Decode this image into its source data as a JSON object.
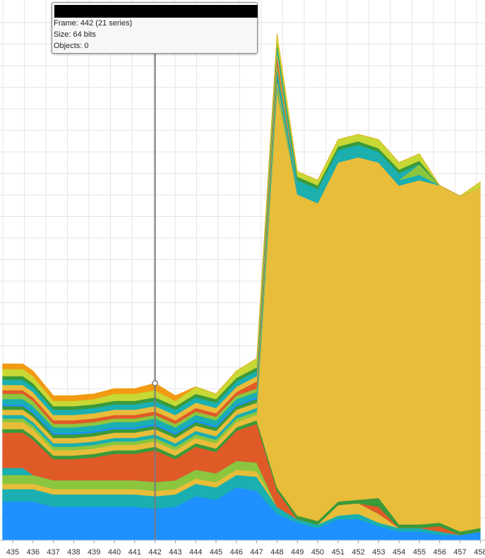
{
  "chart_data": {
    "type": "area",
    "stacked": true,
    "x_ticks": [
      435,
      436,
      437,
      438,
      439,
      440,
      441,
      442,
      443,
      444,
      445,
      446,
      447,
      448,
      449,
      450,
      451,
      452,
      453,
      454,
      455,
      456,
      457,
      458
    ],
    "x": [
      434.5,
      435.5,
      436,
      437,
      438,
      439,
      440,
      441,
      442,
      443,
      444,
      445,
      446,
      447,
      448,
      449,
      450,
      451,
      452,
      453,
      454,
      455,
      456,
      457,
      458
    ],
    "ylim": [
      0,
      300
    ],
    "grid": true,
    "series": [
      {
        "color": "#1e90ff",
        "values": [
          22,
          22,
          22,
          19,
          19,
          19,
          19,
          19,
          18,
          19,
          25,
          23,
          30,
          28,
          15,
          10,
          7,
          12,
          12,
          8,
          5,
          5,
          3,
          3,
          5
        ]
      },
      {
        "color": "#1aafb0",
        "values": [
          7,
          7,
          7,
          7,
          7,
          7,
          7,
          7,
          7,
          7,
          7,
          7,
          7,
          8,
          4,
          2,
          2,
          2,
          3,
          2,
          2,
          2,
          2,
          0,
          0
        ]
      },
      {
        "color": "#e8bd3a",
        "values": [
          3,
          3,
          3,
          3,
          3,
          3,
          3,
          3,
          3,
          3,
          3,
          3,
          3,
          3,
          0,
          0,
          0,
          6,
          6,
          5,
          0,
          0,
          0,
          0,
          0
        ]
      },
      {
        "color": "#8cc63f",
        "values": [
          5,
          5,
          5,
          5,
          5,
          5,
          5,
          5,
          5,
          5,
          5,
          5,
          5,
          5,
          0,
          0,
          0,
          0,
          0,
          0,
          0,
          0,
          0,
          0,
          0
        ]
      },
      {
        "color": "#1aafb0",
        "values": [
          4,
          4,
          0,
          0,
          0,
          0,
          0,
          0,
          0,
          0,
          0,
          0,
          0,
          0,
          0,
          0,
          0,
          0,
          0,
          0,
          0,
          0,
          0,
          0,
          0
        ]
      },
      {
        "color": "#e05a28",
        "values": [
          20,
          20,
          20,
          12,
          12,
          13,
          15,
          15,
          18,
          12,
          13,
          12,
          17,
          22,
          9,
          0,
          0,
          0,
          0,
          4,
          0,
          0,
          3,
          0,
          0
        ]
      },
      {
        "color": "#3a9a3a",
        "values": [
          2,
          2,
          2,
          2,
          2,
          2,
          2,
          2,
          2,
          2,
          2,
          2,
          2,
          2,
          2,
          2,
          2,
          2,
          2,
          5,
          2,
          2,
          2,
          2,
          2
        ]
      },
      {
        "color": "#e8bd3a",
        "values": [
          4,
          4,
          4,
          3,
          3,
          3,
          3,
          3,
          3,
          3,
          3,
          3,
          3,
          3,
          224,
          182,
          180,
          192,
          194,
          190,
          192,
          195,
          191,
          190,
          193
        ]
      },
      {
        "color": "#8cc63f",
        "values": [
          2,
          2,
          2,
          2,
          2,
          2,
          2,
          2,
          2,
          2,
          2,
          2,
          2,
          2,
          2,
          0,
          0,
          0,
          0,
          0,
          0,
          0,
          0,
          0,
          0
        ]
      },
      {
        "color": "#1aafb0",
        "values": [
          2,
          2,
          2,
          2,
          2,
          2,
          2,
          2,
          2,
          2,
          2,
          2,
          2,
          2,
          2,
          0,
          0,
          0,
          0,
          0,
          0,
          0,
          0,
          0,
          0
        ]
      },
      {
        "color": "#e8bd3a",
        "values": [
          3,
          3,
          3,
          3,
          3,
          3,
          3,
          3,
          3,
          3,
          3,
          3,
          3,
          3,
          3,
          0,
          0,
          0,
          0,
          0,
          0,
          0,
          0,
          0,
          0
        ]
      },
      {
        "color": "#3a9a3a",
        "values": [
          2,
          2,
          2,
          2,
          2,
          2,
          2,
          2,
          2,
          2,
          2,
          2,
          2,
          2,
          2,
          0,
          0,
          0,
          0,
          0,
          0,
          0,
          0,
          0,
          0
        ]
      },
      {
        "color": "#1e90ff",
        "values": [
          1,
          1,
          1,
          1,
          1,
          1,
          1,
          1,
          1,
          1,
          1,
          1,
          1,
          1,
          1,
          0,
          0,
          0,
          0,
          0,
          0,
          0,
          0,
          0,
          0
        ]
      },
      {
        "color": "#1aafb0",
        "values": [
          3,
          3,
          3,
          3,
          3,
          3,
          3,
          3,
          3,
          3,
          3,
          3,
          3,
          3,
          3,
          4,
          4,
          3,
          3,
          3,
          3,
          3,
          0,
          0,
          0
        ]
      },
      {
        "color": "#8cc63f",
        "values": [
          3,
          3,
          3,
          2,
          2,
          2,
          2,
          2,
          2,
          2,
          2,
          2,
          2,
          2,
          3,
          0,
          0,
          0,
          0,
          0,
          0,
          6,
          0,
          0,
          0
        ]
      },
      {
        "color": "#e05a28",
        "values": [
          2,
          2,
          2,
          2,
          2,
          2,
          2,
          2,
          2,
          2,
          2,
          2,
          2,
          4,
          4,
          0,
          0,
          0,
          0,
          0,
          0,
          0,
          0,
          0,
          0
        ]
      },
      {
        "color": "#e8bd3a",
        "values": [
          3,
          3,
          3,
          3,
          3,
          3,
          3,
          3,
          3,
          3,
          3,
          3,
          3,
          3,
          3,
          0,
          0,
          0,
          0,
          0,
          0,
          0,
          0,
          0,
          0
        ]
      },
      {
        "color": "#1aafb0",
        "values": [
          3,
          3,
          3,
          3,
          3,
          3,
          3,
          3,
          3,
          3,
          3,
          3,
          3,
          3,
          3,
          4,
          4,
          4,
          4,
          3,
          4,
          0,
          0,
          0,
          0
        ]
      },
      {
        "color": "#3a9a3a",
        "values": [
          2,
          2,
          2,
          2,
          2,
          2,
          2,
          2,
          2,
          2,
          2,
          2,
          2,
          2,
          2,
          2,
          2,
          2,
          2,
          2,
          2,
          2,
          0,
          0,
          0
        ]
      },
      {
        "color": "#c8d834",
        "values": [
          4,
          4,
          4,
          3,
          3,
          3,
          4,
          4,
          4,
          3,
          4,
          3,
          4,
          5,
          5,
          3,
          3,
          4,
          4,
          5,
          4,
          4,
          0,
          0,
          3
        ]
      },
      {
        "color": "#f29a12",
        "values": [
          3,
          3,
          3,
          3,
          3,
          3,
          3,
          3,
          4,
          3,
          0,
          0,
          0,
          0,
          0,
          0,
          0,
          0,
          0,
          0,
          0,
          0,
          0,
          0,
          0
        ]
      }
    ],
    "crosshair_x": 442,
    "tooltip": {
      "frame": "Frame: 442 (21 series)",
      "size": "Size: 64 bits",
      "objects": "Objects: 0"
    }
  }
}
